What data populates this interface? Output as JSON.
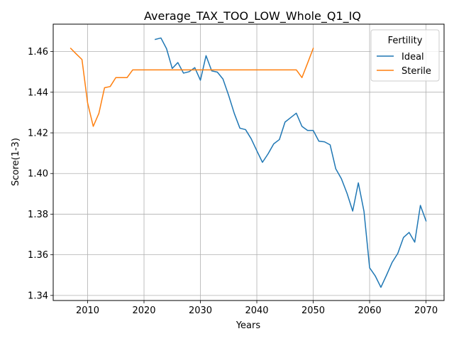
{
  "chart_data": {
    "type": "line",
    "title": "Average_TAX_TOO_LOW_Whole_Q1_IQ",
    "xlabel": "Years",
    "ylabel": "Score(1-3)",
    "xlim": [
      2003.9,
      2073.2
    ],
    "ylim": [
      1.3375,
      1.4735
    ],
    "xticks": [
      2010,
      2020,
      2030,
      2040,
      2050,
      2060,
      2070
    ],
    "yticks": [
      1.34,
      1.36,
      1.38,
      1.4,
      1.42,
      1.44,
      1.46
    ],
    "ytick_labels": [
      "1.34",
      "1.36",
      "1.38",
      "1.40",
      "1.42",
      "1.44",
      "1.46"
    ],
    "grid": true,
    "legend": {
      "title": "Fertility",
      "position": "top-right"
    },
    "series": [
      {
        "name": "Ideal",
        "color": "#1f77b4",
        "x": [
          2022,
          2023,
          2024,
          2025,
          2026,
          2027,
          2028,
          2029,
          2030,
          2031,
          2032,
          2033,
          2034,
          2035,
          2036,
          2037,
          2038,
          2039,
          2040,
          2041,
          2042,
          2043,
          2044,
          2045,
          2046,
          2047,
          2048,
          2049,
          2050,
          2051,
          2052,
          2053,
          2054,
          2055,
          2056,
          2057,
          2058,
          2059,
          2060,
          2061,
          2062,
          2063,
          2064,
          2065,
          2066,
          2067,
          2068,
          2069,
          2070
        ],
        "y": [
          1.466,
          1.4667,
          1.4614,
          1.4517,
          1.4546,
          1.4494,
          1.4501,
          1.4521,
          1.4459,
          1.458,
          1.4505,
          1.4499,
          1.4465,
          1.4385,
          1.4296,
          1.4223,
          1.4216,
          1.4171,
          1.4112,
          1.4055,
          1.4097,
          1.4146,
          1.4167,
          1.4253,
          1.4275,
          1.4297,
          1.4232,
          1.4212,
          1.4212,
          1.4159,
          1.4156,
          1.4141,
          1.4023,
          1.3974,
          1.3902,
          1.3815,
          1.3954,
          1.3814,
          1.3536,
          1.3496,
          1.344,
          1.35,
          1.3563,
          1.3607,
          1.3685,
          1.371,
          1.3662,
          1.3843,
          1.3767
        ]
      },
      {
        "name": "Sterile",
        "color": "#ff7f0e",
        "x": [
          2007,
          2008,
          2009,
          2010,
          2011,
          2012,
          2013,
          2014,
          2015,
          2016,
          2017,
          2018,
          2019,
          2020,
          2021,
          2022,
          2023,
          2024,
          2025,
          2026,
          2027,
          2028,
          2029,
          2030,
          2031,
          2032,
          2033,
          2034,
          2035,
          2036,
          2037,
          2038,
          2039,
          2040,
          2041,
          2042,
          2043,
          2044,
          2045,
          2046,
          2047,
          2048,
          2049,
          2050
        ],
        "y": [
          1.4616,
          1.4588,
          1.4561,
          1.4347,
          1.4232,
          1.4296,
          1.4422,
          1.4428,
          1.4472,
          1.4472,
          1.4472,
          1.451,
          1.451,
          1.451,
          1.451,
          1.451,
          1.451,
          1.451,
          1.451,
          1.451,
          1.451,
          1.451,
          1.451,
          1.451,
          1.451,
          1.451,
          1.451,
          1.451,
          1.451,
          1.451,
          1.451,
          1.451,
          1.451,
          1.451,
          1.451,
          1.451,
          1.451,
          1.451,
          1.451,
          1.451,
          1.451,
          1.4472,
          1.4543,
          1.4616
        ]
      }
    ]
  }
}
